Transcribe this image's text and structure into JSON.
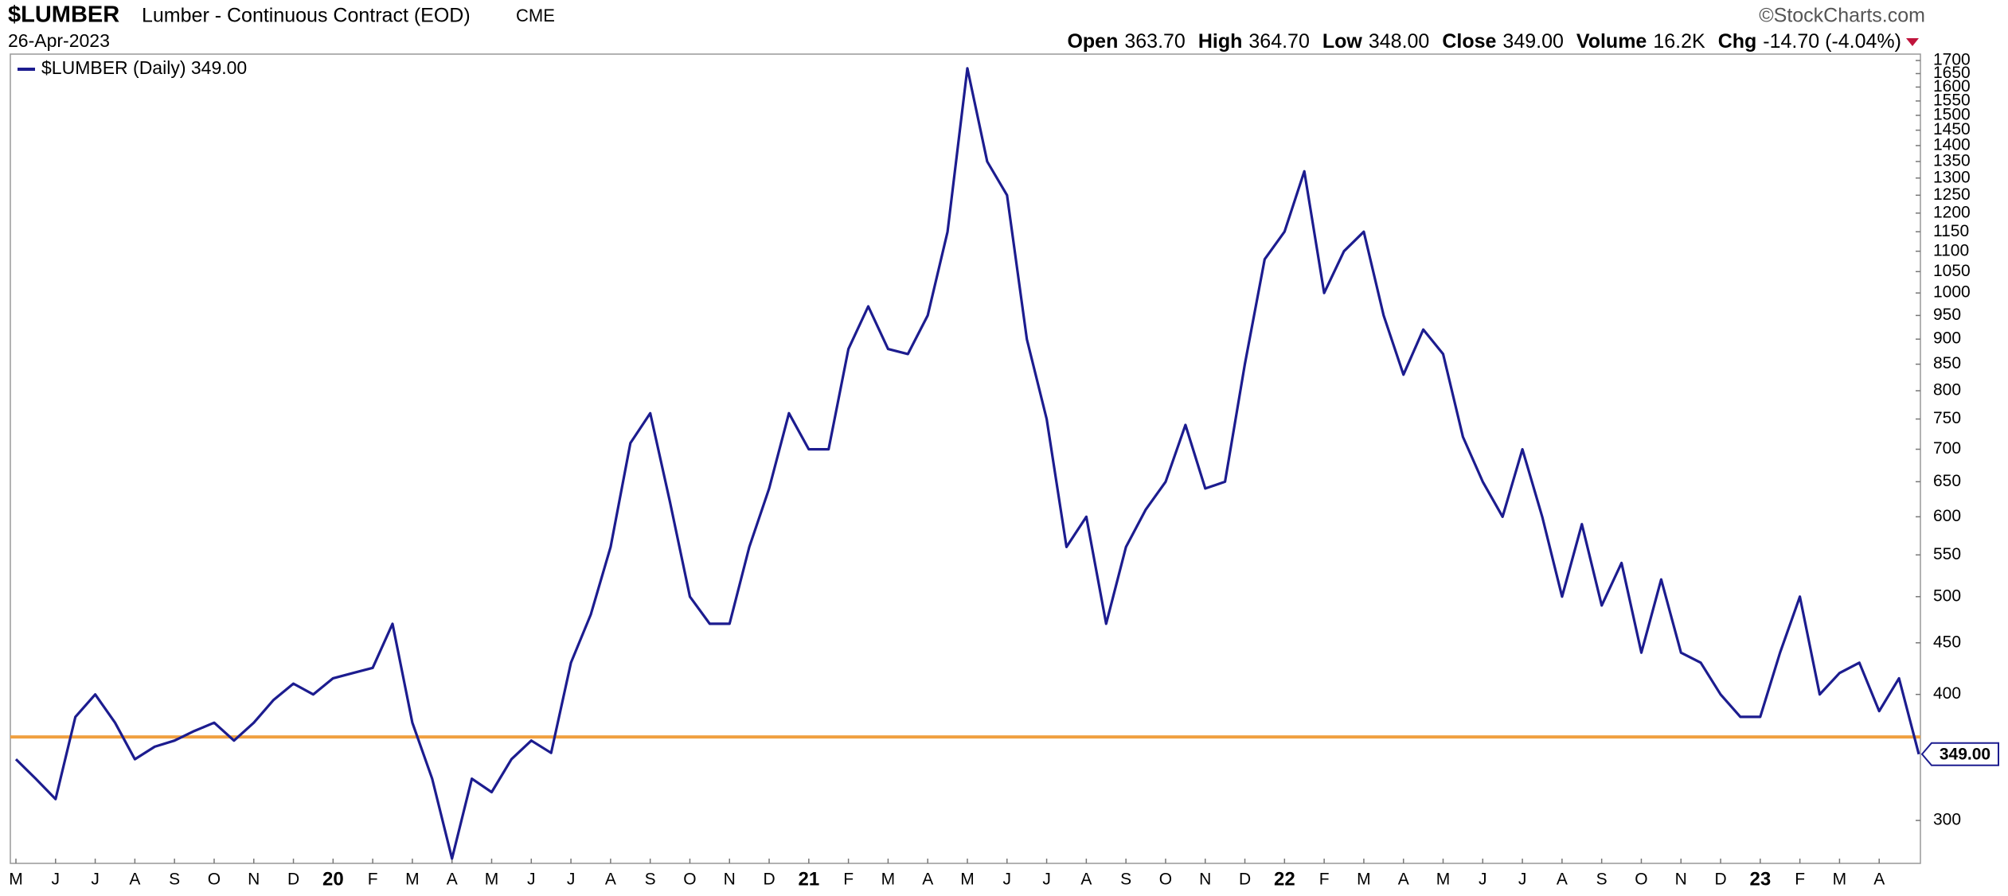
{
  "chart_data": {
    "type": "line",
    "symbol": "$LUMBER",
    "title": "Lumber - Continuous Contract (EOD)",
    "exchange": "CME",
    "date": "26-Apr-2023",
    "credit": "©StockCharts.com",
    "quote": [
      {
        "label": "Open",
        "value": "363.70"
      },
      {
        "label": "High",
        "value": "364.70"
      },
      {
        "label": "Low",
        "value": "348.00"
      },
      {
        "label": "Close",
        "value": "349.00"
      },
      {
        "label": "Volume",
        "value": "16.2K"
      },
      {
        "label": "Chg",
        "value": "-14.70 (-4.04%)"
      }
    ],
    "categories": [
      "M",
      null,
      "J",
      null,
      "J",
      null,
      "A",
      null,
      "S",
      null,
      "O",
      null,
      "N",
      null,
      "D",
      null,
      "20",
      null,
      "F",
      null,
      "M",
      null,
      "A",
      null,
      "M",
      null,
      "J",
      null,
      "J",
      null,
      "A",
      null,
      "S",
      null,
      "O",
      null,
      "N",
      null,
      "D",
      null,
      "21",
      null,
      "F",
      null,
      "M",
      null,
      "A",
      null,
      "M",
      null,
      "J",
      null,
      "J",
      null,
      "A",
      null,
      "S",
      null,
      "O",
      null,
      "N",
      null,
      "D",
      null,
      "22",
      null,
      "F",
      null,
      "M",
      null,
      "A",
      null,
      "M",
      null,
      "J",
      null,
      "J",
      null,
      "A",
      null,
      "S",
      null,
      "O",
      null,
      "N",
      null,
      "D",
      null,
      "23",
      null,
      "F",
      null,
      "M",
      null,
      "A",
      null,
      null
    ],
    "series": [
      {
        "name": "$LUMBER (Daily) 349.00",
        "color": "#1c1c8f",
        "values": [
          345,
          330,
          315,
          380,
          400,
          375,
          345,
          355,
          360,
          368,
          375,
          360,
          375,
          395,
          410,
          400,
          415,
          420,
          425,
          470,
          375,
          330,
          275,
          330,
          320,
          345,
          360,
          350,
          430,
          480,
          560,
          710,
          760,
          620,
          500,
          470,
          470,
          560,
          640,
          760,
          700,
          700,
          880,
          970,
          880,
          870,
          950,
          1150,
          1670,
          1350,
          1250,
          900,
          750,
          560,
          600,
          470,
          560,
          610,
          650,
          740,
          640,
          650,
          850,
          1080,
          1150,
          1320,
          1000,
          1100,
          1150,
          950,
          830,
          920,
          870,
          720,
          650,
          600,
          700,
          600,
          500,
          590,
          490,
          540,
          440,
          520,
          440,
          430,
          400,
          380,
          380,
          440,
          500,
          400,
          420,
          430,
          385,
          415,
          349
        ],
        "last_value_label": "349.00"
      }
    ],
    "hline": {
      "value": 363,
      "color": "#f0a040"
    },
    "log_scale": true,
    "ylim": [
      272,
      1725
    ],
    "yticks": [
      300,
      400,
      450,
      500,
      550,
      600,
      650,
      700,
      750,
      800,
      850,
      900,
      950,
      1000,
      1050,
      1100,
      1150,
      1200,
      1250,
      1300,
      1350,
      1400,
      1450,
      1500,
      1550,
      1600,
      1650,
      1700
    ]
  }
}
